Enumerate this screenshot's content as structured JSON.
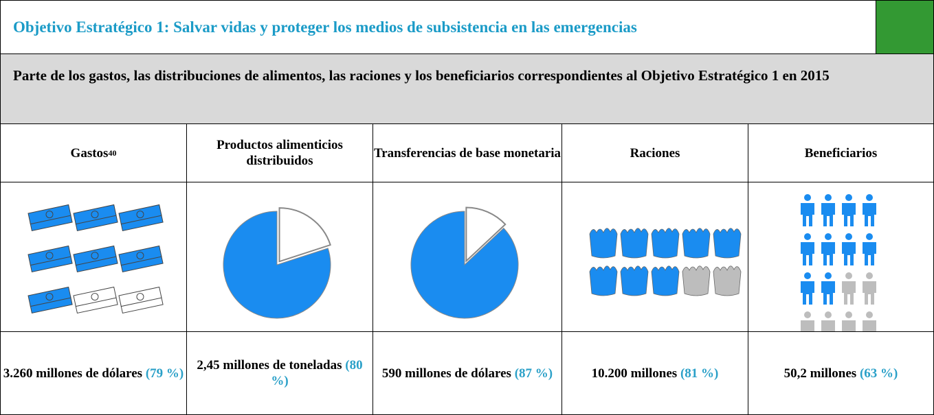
{
  "header": {
    "title": "Objetivo Estratégico 1: Salvar vidas y proteger los medios de subsistencia en las emergencias",
    "subtitle": "Parte de los gastos, las distribuciones de alimentos, las raciones y los beneficiarios correspondientes al Objetivo Estratégico 1 en 2015"
  },
  "columns": [
    {
      "header": "Gastos",
      "note": "40",
      "value": "3.260 millones de dólares",
      "percent": {
        "value": 79,
        "label": "(79 %)"
      }
    },
    {
      "header": "Productos alimenticios distribuidos",
      "value": "2,45 millones de toneladas",
      "percent": {
        "value": 80,
        "label": "(80 %)"
      }
    },
    {
      "header": "Transferencias de base monetaria",
      "value": "590 millones de dólares",
      "percent": {
        "value": 87,
        "label": "(87 %)"
      }
    },
    {
      "header": "Raciones",
      "value": "10.200 millones",
      "percent": {
        "value": 81,
        "label": "(81 %)"
      }
    },
    {
      "header": "Beneficiarios",
      "value": "50,2 millones",
      "percent": {
        "value": 63,
        "label": "(63 %)"
      }
    }
  ]
}
